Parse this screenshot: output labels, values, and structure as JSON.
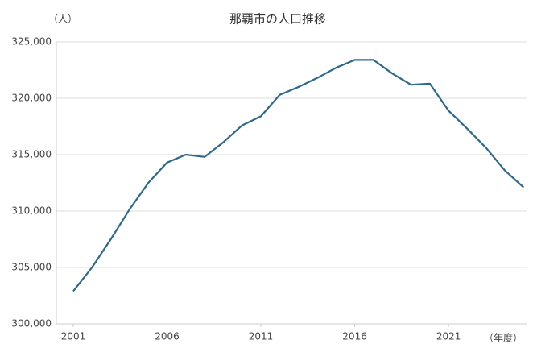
{
  "chart_data": {
    "type": "line",
    "title": "那覇市の人口推移",
    "y_unit": "（人）",
    "x_unit": "（年度）",
    "x": [
      2001,
      2002,
      2003,
      2004,
      2005,
      2006,
      2007,
      2008,
      2009,
      2010,
      2011,
      2012,
      2013,
      2014,
      2015,
      2016,
      2017,
      2018,
      2019,
      2020,
      2021,
      2022,
      2023,
      2024,
      2025
    ],
    "series": [
      {
        "name": "人口",
        "color": "#2b6a8c",
        "values": [
          302900,
          305000,
          307500,
          310150,
          312500,
          314300,
          315000,
          314800,
          316100,
          317600,
          318400,
          320300,
          321000,
          321800,
          322700,
          323400,
          323400,
          322200,
          321200,
          321300,
          318900,
          317300,
          315600,
          313600,
          312100
        ]
      }
    ],
    "xlim": [
      2000.1,
      2025.2
    ],
    "xticks": [
      2001,
      2006,
      2011,
      2016,
      2021
    ],
    "ylim": [
      300000,
      325000
    ],
    "yticks": [
      {
        "value": 300000,
        "label": "300,000"
      },
      {
        "value": 305000,
        "label": "305,000"
      },
      {
        "value": 310000,
        "label": "310,000"
      },
      {
        "value": 315000,
        "label": "315,000"
      },
      {
        "value": 320000,
        "label": "320,000"
      },
      {
        "value": 325000,
        "label": "325,000"
      }
    ],
    "grid": true
  }
}
